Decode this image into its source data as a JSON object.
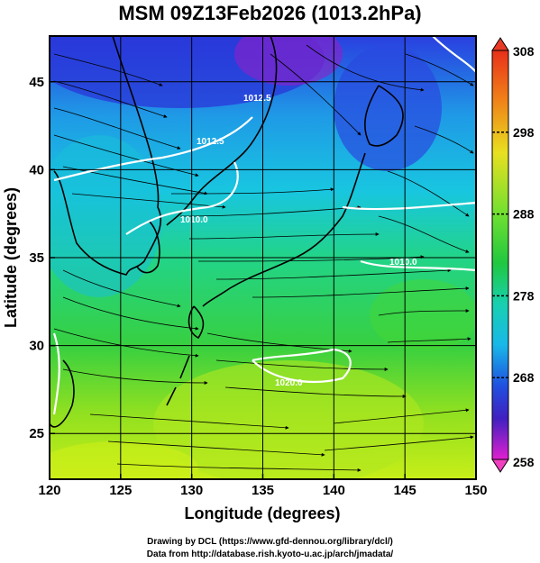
{
  "header": {
    "title": "MSM 09Z13Feb2026 (1013.2hPa)"
  },
  "map": {
    "x_axis_label": "Longitude (degrees)",
    "y_axis_label": "Latitude  (degrees)",
    "lon_range": [
      120,
      150
    ],
    "lat_range": [
      22.4,
      47.6
    ],
    "lon_ticks": [
      "120",
      "125",
      "130",
      "135",
      "140",
      "145",
      "150"
    ],
    "lat_ticks": [
      "25",
      "30",
      "35",
      "40",
      "45"
    ],
    "contour_labels": [
      "1012.5",
      "1010.0",
      "1010.0",
      "1020.0",
      "1012.5"
    ],
    "field_colors": {
      "cold": "#2a3fe0",
      "cool": "#18c6e0",
      "mid": "#30d060",
      "warm": "#b8ec18"
    },
    "isobar_color": "#ffffff",
    "streamline_color": "#000000"
  },
  "colorbar": {
    "range": [
      258,
      308
    ],
    "tick_labels": [
      "308",
      "298",
      "288",
      "278",
      "268",
      "258"
    ]
  },
  "credits": {
    "line1": "Drawing by DCL (https://www.gfd-dennou.org/library/dcl/)",
    "line2": "Data from http://database.rish.kyoto-u.ac.jp/arch/jmadata/"
  }
}
